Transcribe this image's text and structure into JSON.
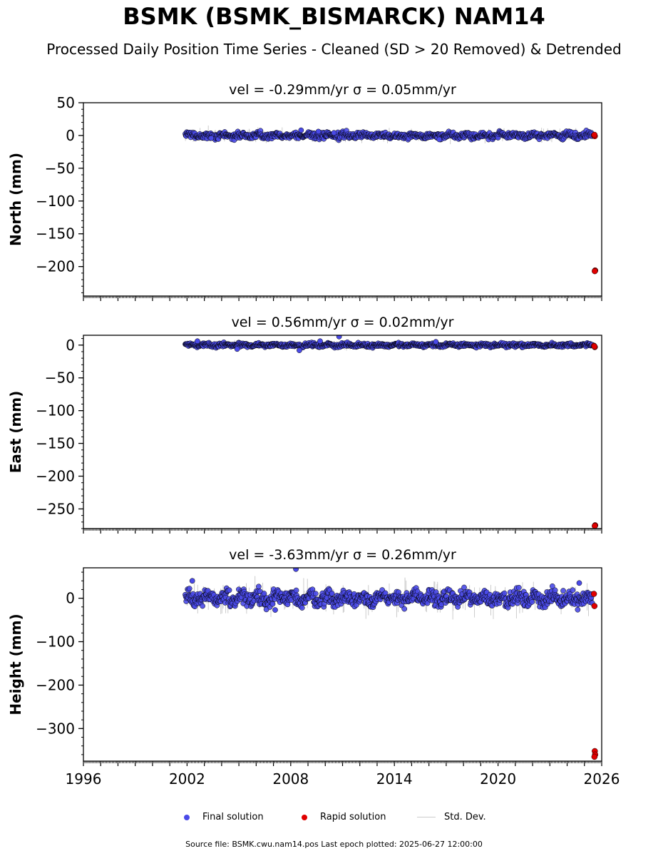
{
  "title": "BSMK (BSMK_BISMARCK) NAM14",
  "subtitle": "Processed Daily Position Time Series - Cleaned (SD > 20 Removed) & Detrended",
  "legend": {
    "final": "Final solution",
    "rapid": "Rapid solution",
    "std": "Std. Dev."
  },
  "footer": "Source file: BSMK.cwu.nam14.pos  Last epoch plotted: 2025-06-27 12:00:00",
  "colors": {
    "final": "#4a4ae8",
    "rapid": "#e00000",
    "std": "#cccccc",
    "edge": "#000000"
  },
  "chart_data": [
    {
      "type": "scatter",
      "title": "vel = -0.29mm/yr   σ = 0.05mm/yr",
      "ylabel": "North (mm)",
      "xlim": [
        1996,
        2026
      ],
      "ylim": [
        -245,
        50
      ],
      "yticks": [
        50,
        0,
        -50,
        -100,
        -150,
        -200
      ],
      "series": [
        {
          "name": "Final solution",
          "x_range": [
            2001.9,
            2025.45
          ],
          "center": 0,
          "spread": 5,
          "outliers": [
            [
              2003.4,
              -4
            ],
            [
              2008.6,
              8
            ],
            [
              2009.6,
              6
            ],
            [
              2010.5,
              4
            ],
            [
              2016.6,
              -6
            ]
          ]
        },
        {
          "name": "Rapid solution",
          "points": [
            [
              2025.55,
              0
            ],
            [
              2025.6,
              -1
            ],
            [
              2025.58,
              1
            ],
            [
              2025.62,
              -206
            ],
            [
              2025.6,
              -207
            ]
          ]
        }
      ]
    },
    {
      "type": "scatter",
      "title": "vel = 0.56mm/yr   σ = 0.02mm/yr",
      "ylabel": "East (mm)",
      "xlim": [
        1996,
        2026
      ],
      "ylim": [
        -280,
        15
      ],
      "yticks": [
        0,
        -50,
        -100,
        -150,
        -200,
        -250
      ],
      "series": [
        {
          "name": "Final solution",
          "x_range": [
            2001.9,
            2025.45
          ],
          "center": 0,
          "spread": 3,
          "outliers": [
            [
              2002.6,
              6
            ],
            [
              2004.9,
              -6
            ],
            [
              2008.5,
              -8
            ],
            [
              2009.7,
              6
            ],
            [
              2010.8,
              13
            ],
            [
              2016.4,
              5
            ]
          ]
        },
        {
          "name": "Rapid solution",
          "points": [
            [
              2025.55,
              -1
            ],
            [
              2025.6,
              -3
            ],
            [
              2025.58,
              -2
            ],
            [
              2025.62,
              -275
            ],
            [
              2025.6,
              -276
            ]
          ]
        }
      ]
    },
    {
      "type": "scatter",
      "title": "vel = -3.63mm/yr   σ = 0.26mm/yr",
      "ylabel": "Height (mm)",
      "xlim": [
        1996,
        2026
      ],
      "ylim": [
        -375,
        70
      ],
      "yticks": [
        0,
        -100,
        -200,
        -300
      ],
      "xticks": [
        1996,
        2002,
        2008,
        2014,
        2020,
        2026
      ],
      "series": [
        {
          "name": "Final solution",
          "x_range": [
            2001.9,
            2025.45
          ],
          "center": 0,
          "spread": 18,
          "outliers": [
            [
              2002.3,
              40
            ],
            [
              2007.1,
              -27
            ],
            [
              2008.3,
              67
            ],
            [
              2024.7,
              35
            ]
          ]
        },
        {
          "name": "Rapid solution",
          "points": [
            [
              2025.55,
              10
            ],
            [
              2025.58,
              -18
            ],
            [
              2025.6,
              -352
            ],
            [
              2025.62,
              -360
            ],
            [
              2025.58,
              -365
            ]
          ]
        }
      ]
    }
  ]
}
